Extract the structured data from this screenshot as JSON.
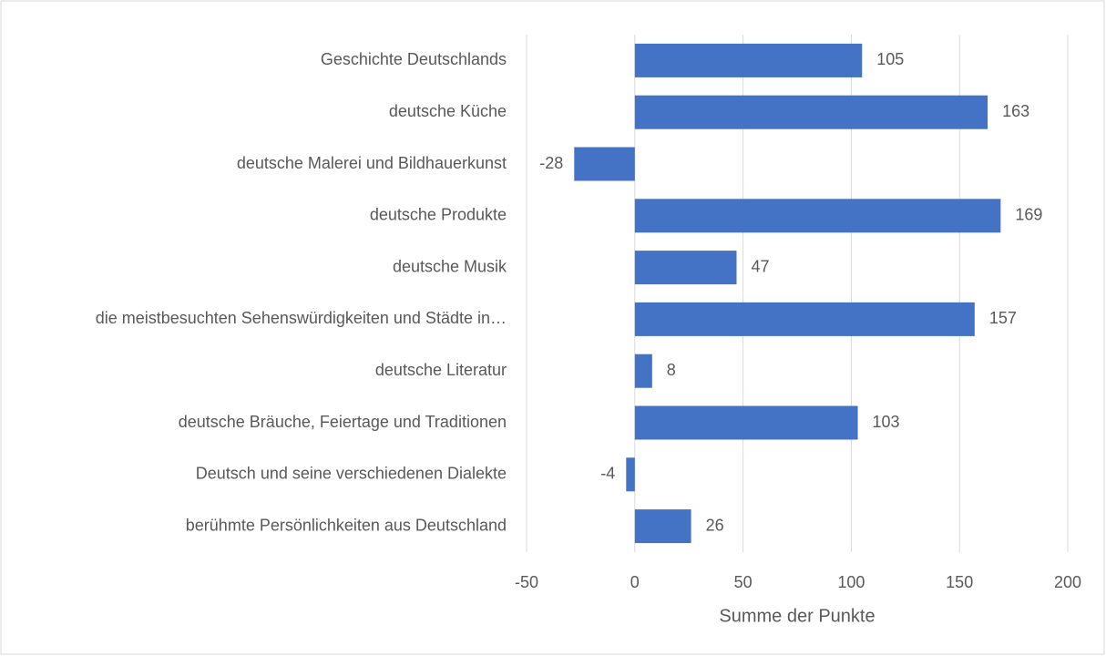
{
  "chart_data": {
    "type": "barh",
    "categories": [
      "Geschichte Deutschlands",
      "deutsche Küche",
      "deutsche Malerei und Bildhauerkunst",
      "deutsche Produkte",
      "deutsche Musik",
      "die meistbesuchten Sehenswürdigkeiten und Städte in…",
      "deutsche Literatur",
      "deutsche Bräuche, Feiertage und Traditionen",
      "Deutsch und seine verschiedenen Dialekte",
      "berühmte Persönlichkeiten aus Deutschland"
    ],
    "values": [
      105,
      163,
      -28,
      169,
      47,
      157,
      8,
      103,
      -4,
      26
    ],
    "color": "#4472c4",
    "xlabel": "Summe der Punkte",
    "xlim": [
      -50,
      200
    ],
    "xticks": [
      -50,
      0,
      50,
      100,
      150,
      200
    ],
    "grid": true
  }
}
